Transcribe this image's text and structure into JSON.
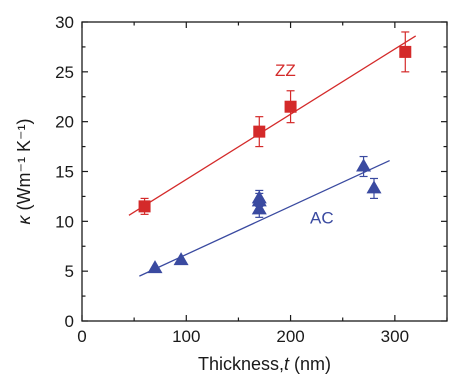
{
  "chart_data": {
    "type": "scatter",
    "title": "",
    "xlabel": {
      "prefix": "Thickness,",
      "var": "t",
      "unit": " (nm)"
    },
    "ylabel": {
      "sym": "κ",
      "text": " (Wm⁻¹ K⁻¹)"
    },
    "xlim": [
      0,
      350
    ],
    "ylim": [
      0,
      30
    ],
    "xticks": [
      0,
      100,
      200,
      300
    ],
    "yticks": [
      0,
      5,
      10,
      15,
      20,
      25,
      30
    ],
    "grid": false,
    "series": [
      {
        "name": "ZZ",
        "marker": "square",
        "color": "#d42a2a",
        "x": [
          60,
          170,
          200,
          310
        ],
        "y": [
          11.5,
          19.0,
          21.5,
          27.0
        ],
        "err": [
          0.8,
          1.5,
          1.6,
          2.0
        ],
        "fit": {
          "x": [
            45,
            320
          ],
          "y": [
            10.6,
            28.6
          ]
        }
      },
      {
        "name": "AC",
        "marker": "triangle",
        "color": "#3a4aa0",
        "x": [
          70,
          95,
          170,
          170,
          170,
          270,
          280
        ],
        "y": [
          5.3,
          6.1,
          11.2,
          12.0,
          12.3,
          15.5,
          13.3
        ],
        "err": [
          0,
          0,
          0.8,
          0.8,
          0.8,
          1.0,
          1.0
        ],
        "fit": {
          "x": [
            55,
            295
          ],
          "y": [
            4.5,
            16.1
          ]
        }
      }
    ]
  }
}
